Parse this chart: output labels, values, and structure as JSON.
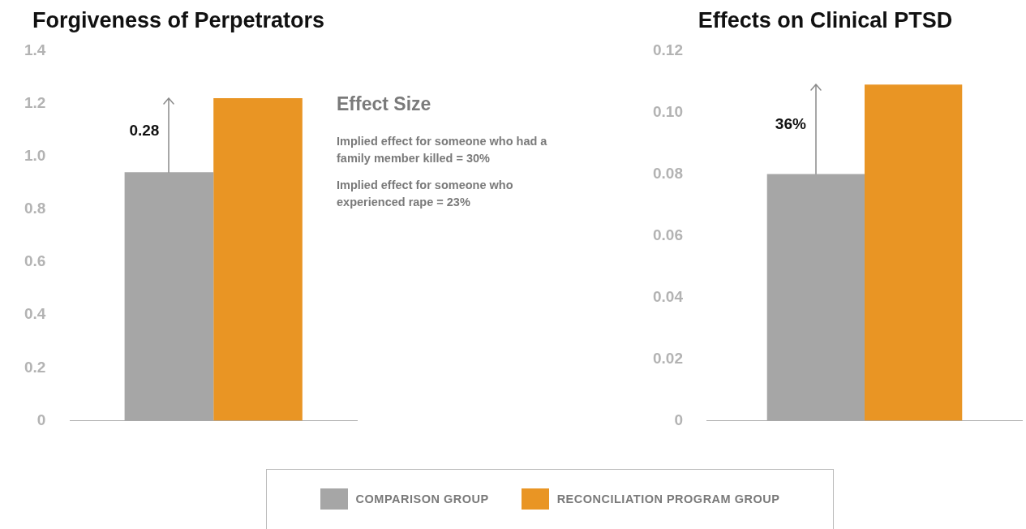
{
  "chart_data": [
    {
      "type": "bar",
      "title": "Forgiveness of Perpetrators",
      "categories": [
        null
      ],
      "series": [
        {
          "name": "COMPARISON GROUP",
          "color": "#a6a6a6",
          "values": [
            0.94
          ]
        },
        {
          "name": "RECONCILIATION PROGRAM GROUP",
          "color": "#e99524",
          "values": [
            1.22
          ]
        }
      ],
      "ylim": [
        0,
        1.4
      ],
      "yticks": [
        0,
        0.2,
        0.4,
        0.6,
        0.8,
        {
          "value": 1,
          "label": "1.0"
        },
        1.2,
        1.4
      ],
      "grid": false,
      "legend": "bottom",
      "annotations": [
        "0.28",
        "Effect Size",
        "Implied effect for someone who had a family member killed = 30%",
        "Implied effect for someone who experienced rape = 23%"
      ]
    },
    {
      "type": "bar",
      "title": "Effects on Clinical PTSD",
      "categories": [
        null
      ],
      "series": [
        {
          "color": "#a6a6a6",
          "values": [
            0.08
          ]
        },
        {
          "color": "#e99524",
          "values": [
            0.109
          ]
        }
      ],
      "ylim": [
        0,
        0.12
      ],
      "yticks": [
        0,
        0.02,
        0.04,
        0.06,
        0.08,
        {
          "value": 0.1,
          "label": "0.10"
        },
        0.12
      ],
      "grid": false,
      "annotations": [
        "36%"
      ]
    }
  ]
}
